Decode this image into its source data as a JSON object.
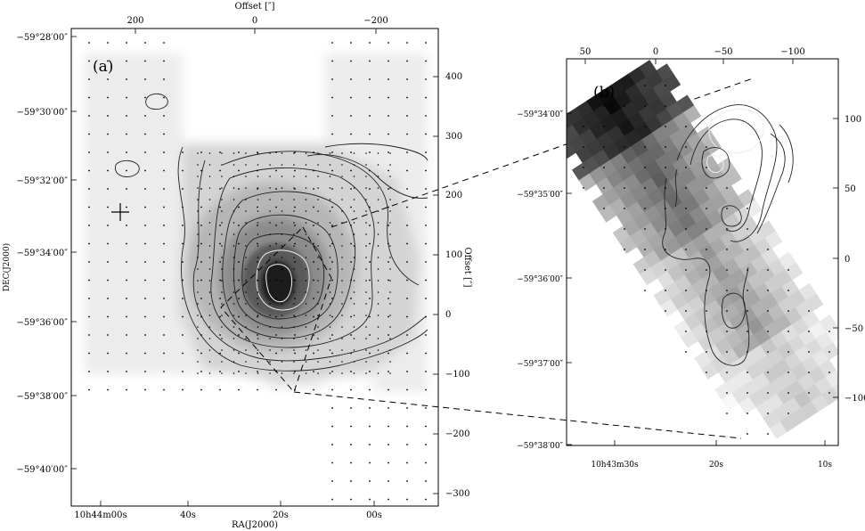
{
  "figure": {
    "panel_a": {
      "label": "(a)",
      "top_axis_title": "Offset [″]",
      "right_axis_title": "Offset [″]",
      "bottom_axis_title": "RA(J2000)",
      "left_axis_title": "DEC(J2000)",
      "top_ticks": [
        "200",
        "0",
        "−200"
      ],
      "right_ticks": [
        "400",
        "300",
        "200",
        "100",
        "0",
        "−100",
        "−200",
        "−300"
      ],
      "left_ticks": [
        "−59°28′00″",
        "−59°30′00″",
        "−59°32′00″",
        "−59°34′00″",
        "−59°36′00″",
        "−59°38′00″",
        "−59°40′00″"
      ],
      "bottom_ticks": [
        "10h44m00s",
        "40s",
        "20s",
        "00s"
      ]
    },
    "panel_b": {
      "label": "(b)",
      "top_ticks": [
        "50",
        "0",
        "−50",
        "−100"
      ],
      "right_ticks": [
        "100",
        "50",
        "0",
        "−50",
        "−100"
      ],
      "left_ticks": [
        "−59°34′00″",
        "−59°35′00″",
        "−59°36′00″",
        "−59°37′00″",
        "−59°38′00″"
      ],
      "bottom_ticks": [
        "10h43m30s",
        "20s",
        "10s"
      ]
    }
  }
}
